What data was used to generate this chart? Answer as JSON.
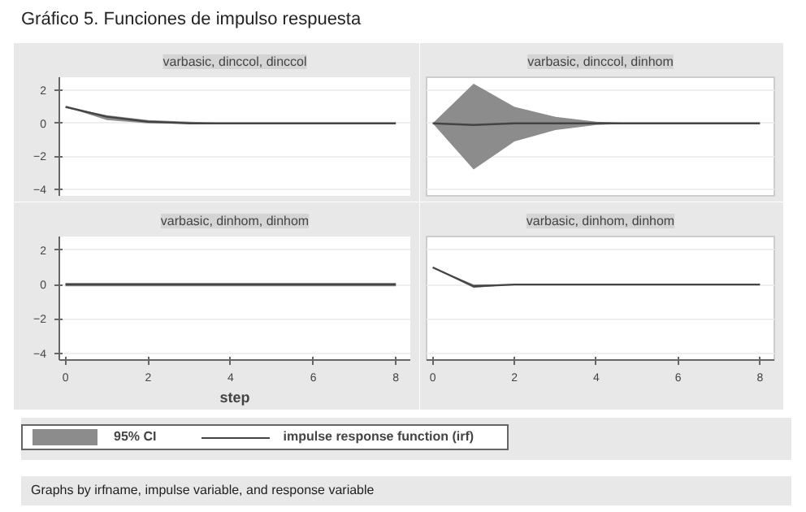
{
  "chart_data": [
    {
      "type": "line",
      "title": "varbasic, dinccol, dinccol",
      "annotations": [
        "Gráfico 5. Funciones de impulso respuesta"
      ],
      "x": [
        0,
        1,
        2,
        3,
        4,
        5,
        6,
        7,
        8
      ],
      "xlim": [
        -0.15,
        8.35
      ],
      "ylim": [
        -4.4,
        2.8
      ],
      "xticks": [
        0,
        2,
        4,
        6,
        8
      ],
      "yticks": [
        -4,
        -2,
        0,
        2
      ],
      "grid": "y",
      "tick_labels": "y",
      "series": [
        {
          "color": "#444444",
          "values": [
            1,
            0.4,
            0.1,
            0,
            0,
            0,
            0,
            0,
            0
          ],
          "lower": [
            1,
            0.2,
            0,
            0,
            0,
            0,
            0,
            0,
            0
          ],
          "upper": [
            1,
            0.5,
            0.2,
            0.1,
            0,
            0,
            0,
            0,
            0
          ]
        }
      ]
    },
    {
      "type": "line",
      "title": "varbasic, dinccol, dinhom",
      "x": [
        0,
        1,
        2,
        3,
        4,
        5,
        6,
        7,
        8
      ],
      "xlim": [
        -0.15,
        8.35
      ],
      "ylim": [
        -4.4,
        2.8
      ],
      "xticks": [
        0,
        2,
        4,
        6,
        8
      ],
      "yticks": [
        -4,
        -2,
        0,
        2
      ],
      "grid": "y",
      "tick_labels": false,
      "series": [
        {
          "color": "#444444",
          "values": [
            0,
            -0.1,
            0,
            0,
            0,
            0,
            0,
            0,
            0
          ],
          "lower": [
            0,
            -2.8,
            -1.1,
            -0.4,
            -0.1,
            0,
            0,
            0,
            0
          ],
          "upper": [
            0,
            2.4,
            1.0,
            0.4,
            0.1,
            0,
            0,
            0,
            0
          ]
        }
      ]
    },
    {
      "type": "line",
      "title": "varbasic, dinhom, dinhom",
      "xlabel": "step",
      "x": [
        0,
        1,
        2,
        3,
        4,
        5,
        6,
        7,
        8
      ],
      "xlim": [
        -0.15,
        8.35
      ],
      "ylim": [
        -4.4,
        2.8
      ],
      "xticks": [
        0,
        2,
        4,
        6,
        8
      ],
      "yticks": [
        -4,
        -2,
        0,
        2
      ],
      "grid": "y",
      "series": [
        {
          "color": "#444444",
          "values": [
            0,
            0,
            0,
            0,
            0,
            0,
            0,
            0,
            0
          ],
          "lower": [
            -0.1,
            -0.1,
            -0.1,
            -0.1,
            -0.1,
            -0.1,
            -0.1,
            -0.1,
            -0.1
          ],
          "upper": [
            0.1,
            0.1,
            0.1,
            0.1,
            0.1,
            0.1,
            0.1,
            0.1,
            0.1
          ]
        }
      ]
    },
    {
      "type": "line",
      "title": "varbasic, dinhom, dinhom",
      "annotations": [
        "95% CI",
        "Graphs by irfname, impulse variable, and response variable"
      ],
      "legend": "bottom",
      "x": [
        0,
        1,
        2,
        3,
        4,
        5,
        6,
        7,
        8
      ],
      "xlim": [
        -0.15,
        8.35
      ],
      "ylim": [
        -4.4,
        2.8
      ],
      "xticks": [
        0,
        2,
        4,
        6,
        8
      ],
      "yticks": [
        -4,
        -2,
        0,
        2
      ],
      "grid": "y",
      "tick_labels": "x",
      "series": [
        {
          "name": "impulse response function (irf)",
          "color": "#444444",
          "values": [
            1,
            -0.1,
            0,
            0,
            0,
            0,
            0,
            0,
            0
          ],
          "lower": [
            1,
            -0.2,
            0,
            0,
            0,
            0,
            0,
            0,
            0
          ],
          "upper": [
            1,
            0,
            0,
            0,
            0,
            0,
            0,
            0,
            0
          ]
        }
      ]
    }
  ]
}
